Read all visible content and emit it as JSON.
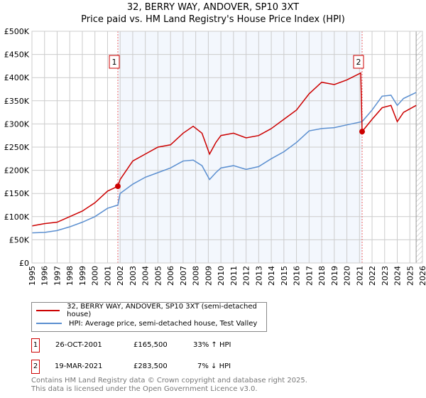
{
  "title": "32, BERRY WAY, ANDOVER, SP10 3XT",
  "subtitle": "Price paid vs. HM Land Registry's House Price Index (HPI)",
  "chart_data": {
    "type": "line",
    "title": "32, BERRY WAY, ANDOVER, SP10 3XT",
    "subtitle": "Price paid vs. HM Land Registry's House Price Index (HPI)",
    "xlim": [
      1995,
      2026
    ],
    "ylim": [
      0,
      500000
    ],
    "x_ticks": [
      "1995",
      "1996",
      "1997",
      "1998",
      "1999",
      "2000",
      "2001",
      "2002",
      "2003",
      "2004",
      "2005",
      "2006",
      "2007",
      "2008",
      "2009",
      "2010",
      "2011",
      "2012",
      "2013",
      "2014",
      "2015",
      "2016",
      "2017",
      "2018",
      "2019",
      "2020",
      "2021",
      "2022",
      "2023",
      "2024",
      "2025",
      "2026"
    ],
    "y_ticks": [
      {
        "v": 0,
        "l": "£0"
      },
      {
        "v": 50000,
        "l": "£50K"
      },
      {
        "v": 100000,
        "l": "£100K"
      },
      {
        "v": 150000,
        "l": "£150K"
      },
      {
        "v": 200000,
        "l": "£200K"
      },
      {
        "v": 250000,
        "l": "£250K"
      },
      {
        "v": 300000,
        "l": "£300K"
      },
      {
        "v": 350000,
        "l": "£350K"
      },
      {
        "v": 400000,
        "l": "£400K"
      },
      {
        "v": 450000,
        "l": "£450K"
      },
      {
        "v": 500000,
        "l": "£500K"
      }
    ],
    "grid": true,
    "shaded_range": [
      2001.82,
      2021.21
    ],
    "forecast_hatch_from": 2025.5,
    "series": [
      {
        "name": "32, BERRY WAY, ANDOVER, SP10 3XT (semi-detached house)",
        "color": "#cc0000",
        "x": [
          1995,
          1996,
          1997,
          1998,
          1999,
          2000,
          2001,
          2001.82,
          2002,
          2003,
          2004,
          2005,
          2006,
          2007,
          2007.8,
          2008.5,
          2009.1,
          2009.6,
          2010,
          2011,
          2012,
          2013,
          2014,
          2015,
          2016,
          2017,
          2018,
          2019,
          2020,
          2021.1,
          2021.21,
          2022,
          2022.8,
          2023.5,
          2024,
          2024.5,
          2025.5
        ],
        "y": [
          80000,
          85000,
          88000,
          100000,
          112000,
          130000,
          155000,
          165500,
          180000,
          220000,
          235000,
          250000,
          255000,
          280000,
          295000,
          280000,
          235000,
          260000,
          275000,
          280000,
          270000,
          275000,
          290000,
          310000,
          330000,
          365000,
          390000,
          385000,
          395000,
          410000,
          283500,
          310000,
          335000,
          340000,
          305000,
          325000,
          340000
        ]
      },
      {
        "name": "HPI: Average price, semi-detached house, Test Valley",
        "color": "#5b8fd0",
        "x": [
          1995,
          1996,
          1997,
          1998,
          1999,
          2000,
          2001,
          2001.82,
          2002,
          2003,
          2004,
          2005,
          2006,
          2007,
          2007.8,
          2008.5,
          2009.1,
          2009.6,
          2010,
          2011,
          2012,
          2013,
          2014,
          2015,
          2016,
          2017,
          2018,
          2019,
          2020,
          2021.21,
          2022,
          2022.8,
          2023.5,
          2024,
          2024.5,
          2025.5
        ],
        "y": [
          65000,
          66000,
          70000,
          78000,
          88000,
          100000,
          118000,
          125000,
          150000,
          170000,
          185000,
          195000,
          205000,
          220000,
          222000,
          210000,
          180000,
          195000,
          205000,
          210000,
          202000,
          208000,
          225000,
          240000,
          260000,
          285000,
          290000,
          292000,
          298000,
          305000,
          330000,
          360000,
          362000,
          340000,
          355000,
          368000
        ]
      }
    ],
    "annotations": [
      {
        "label": "1",
        "x": 2001.82,
        "y": 165500
      },
      {
        "label": "2",
        "x": 2021.21,
        "y": 283500
      }
    ]
  },
  "legend": [
    "32, BERRY WAY, ANDOVER, SP10 3XT (semi-detached house)",
    "HPI: Average price, semi-detached house, Test Valley"
  ],
  "sales": [
    {
      "n": "1",
      "date": "26-OCT-2001",
      "price": "£165,500",
      "hpi": "33% ↑ HPI"
    },
    {
      "n": "2",
      "date": "19-MAR-2021",
      "price": "£283,500",
      "hpi": "7% ↓ HPI"
    }
  ],
  "footer": [
    "Contains HM Land Registry data © Crown copyright and database right 2025.",
    "This data is licensed under the Open Government Licence v3.0."
  ]
}
